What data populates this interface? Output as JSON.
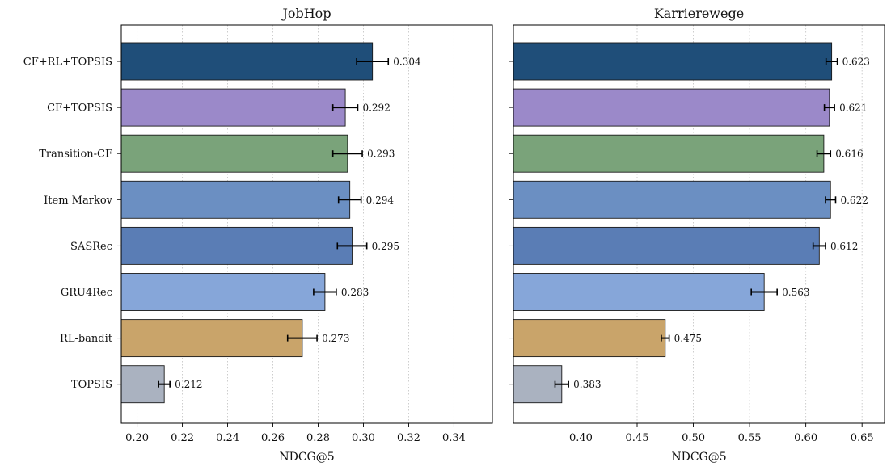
{
  "chart_data": [
    {
      "type": "bar",
      "orientation": "horizontal",
      "title": "JobHop",
      "xlabel": "NDCG@5",
      "ylabel": "",
      "xlim": [
        0.193,
        0.357
      ],
      "xticks": [
        0.2,
        0.22,
        0.24,
        0.26,
        0.28,
        0.3,
        0.32,
        0.34
      ],
      "xtick_labels": [
        "0.20",
        "0.22",
        "0.24",
        "0.26",
        "0.28",
        "0.30",
        "0.32",
        "0.34"
      ],
      "grid": "x-dotted",
      "categories": [
        "CF+RL+TOPSIS",
        "CF+TOPSIS",
        "Transition-CF",
        "Item Markov",
        "SASRec",
        "GRU4Rec",
        "RL-bandit",
        "TOPSIS"
      ],
      "values": [
        0.304,
        0.292,
        0.293,
        0.294,
        0.295,
        0.283,
        0.273,
        0.212
      ],
      "errors": [
        0.007,
        0.0055,
        0.0065,
        0.005,
        0.0065,
        0.005,
        0.0065,
        0.0025
      ],
      "value_labels": [
        "0.304",
        "0.292",
        "0.293",
        "0.294",
        "0.295",
        "0.283",
        "0.273",
        "0.212"
      ],
      "colors": [
        "#1f4e79",
        "#9b89c9",
        "#7aa37a",
        "#6b8fc2",
        "#5a7db5",
        "#86a6d9",
        "#c9a46a",
        "#aab2c0"
      ]
    },
    {
      "type": "bar",
      "orientation": "horizontal",
      "title": "Karrierewege",
      "xlabel": "NDCG@5",
      "ylabel": "",
      "xlim": [
        0.34,
        0.67
      ],
      "xticks": [
        0.4,
        0.45,
        0.5,
        0.55,
        0.6,
        0.65
      ],
      "xtick_labels": [
        "0.40",
        "0.45",
        "0.50",
        "0.55",
        "0.60",
        "0.65"
      ],
      "grid": "x-dotted",
      "categories": [
        "CF+RL+TOPSIS",
        "CF+TOPSIS",
        "Transition-CF",
        "Item Markov",
        "SASRec",
        "GRU4Rec",
        "RL-bandit",
        "TOPSIS"
      ],
      "values": [
        0.623,
        0.621,
        0.616,
        0.622,
        0.612,
        0.563,
        0.475,
        0.383
      ],
      "errors": [
        0.005,
        0.0045,
        0.006,
        0.0045,
        0.0055,
        0.0115,
        0.0035,
        0.006
      ],
      "value_labels": [
        "0.623",
        "0.621",
        "0.616",
        "0.622",
        "0.612",
        "0.563",
        "0.475",
        "0.383"
      ],
      "colors": [
        "#1f4e79",
        "#9b89c9",
        "#7aa37a",
        "#6b8fc2",
        "#5a7db5",
        "#86a6d9",
        "#c9a46a",
        "#aab2c0"
      ]
    }
  ]
}
